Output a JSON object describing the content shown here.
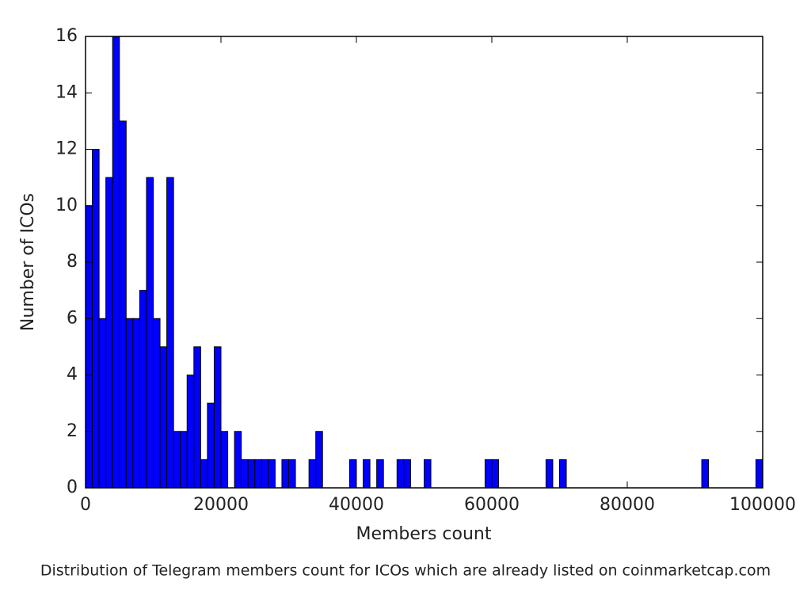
{
  "chart_data": {
    "type": "histogram",
    "xlabel": "Members count",
    "ylabel": "Number of ICOs",
    "caption": "Distribution of Telegram members count for ICOs which are already listed on coinmarketcap.com",
    "color": "#0000ff",
    "bins": [
      0,
      1000,
      2000,
      3000,
      4000,
      5000,
      6000,
      7000,
      8000,
      9000,
      10000,
      11000,
      12000,
      13000,
      14000,
      15000,
      16000,
      17000,
      18000,
      19000,
      20000,
      21000,
      22000,
      23000,
      24000,
      25000,
      26000,
      27000,
      28000,
      29000,
      30000,
      31000,
      32000,
      33000,
      34000,
      35000,
      36000,
      37000,
      38000,
      39000,
      40000,
      41000,
      42000,
      43000,
      44000,
      45000,
      46000,
      47000,
      48000,
      49000,
      50000,
      51000,
      52000,
      53000,
      54000,
      55000,
      56000,
      57000,
      58000,
      59000,
      60000,
      61000,
      62000,
      63000,
      64000,
      65000,
      66000,
      67000,
      68000,
      69000,
      70000,
      71000,
      72000,
      73000,
      74000,
      75000,
      76000,
      77000,
      78000,
      79000,
      80000,
      81000,
      82000,
      83000,
      84000,
      85000,
      86000,
      87000,
      88000,
      89000,
      90000,
      91000,
      92000,
      93000,
      94000,
      95000,
      96000,
      97000,
      98000,
      99000,
      100000
    ],
    "counts": [
      10,
      12,
      6,
      11,
      16,
      13,
      6,
      6,
      7,
      11,
      6,
      5,
      11,
      2,
      2,
      4,
      5,
      1,
      3,
      5,
      2,
      0,
      2,
      1,
      1,
      1,
      1,
      1,
      0,
      1,
      1,
      0,
      0,
      1,
      2,
      0,
      0,
      0,
      0,
      1,
      0,
      1,
      0,
      1,
      0,
      0,
      1,
      1,
      0,
      0,
      1,
      0,
      0,
      0,
      0,
      0,
      0,
      0,
      0,
      1,
      1,
      0,
      0,
      0,
      0,
      0,
      0,
      0,
      1,
      0,
      1,
      0,
      0,
      0,
      0,
      0,
      0,
      0,
      0,
      0,
      0,
      0,
      0,
      0,
      0,
      0,
      0,
      0,
      0,
      0,
      0,
      1,
      0,
      0,
      0,
      0,
      0,
      0,
      0,
      1
    ],
    "xlim": [
      0,
      100000
    ],
    "ylim": [
      0,
      16
    ],
    "xticks": [
      0,
      20000,
      40000,
      60000,
      80000,
      100000
    ],
    "yticks": [
      0,
      2,
      4,
      6,
      8,
      10,
      12,
      14,
      16
    ]
  }
}
